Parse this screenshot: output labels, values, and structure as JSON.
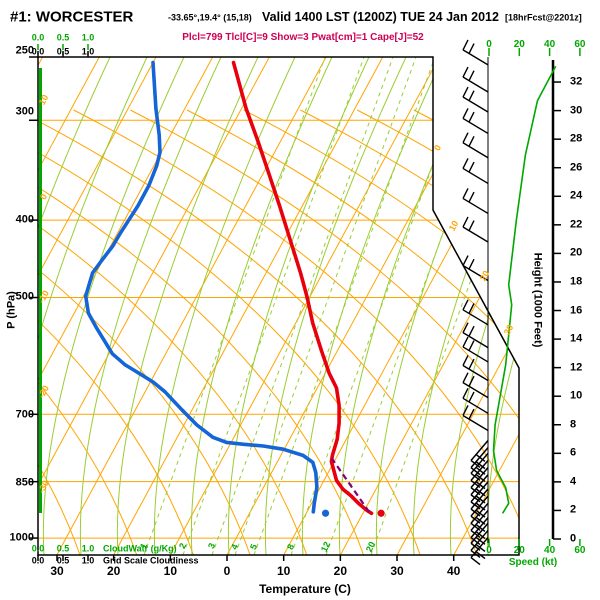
{
  "header": {
    "station": "#1: WORCESTER",
    "coords": "-33.65°,19.4° (15,18)",
    "valid": "Valid 1400 LST (1200Z) TUE 24 Jan 2012",
    "fcst_tag": "[18hrFcst@2201z]",
    "params": "Plcl=799 Tlcl[C]=9 Show=3 Pwat[cm]=1 Cape[J]=52"
  },
  "axes": {
    "pressure": {
      "title": "P (hPa)",
      "ticks": [
        "250",
        "300",
        "400",
        "500",
        "700",
        "850",
        "1000"
      ]
    },
    "temperature": {
      "title": "Temperature (C)",
      "ticks": [
        "30",
        "20",
        "10",
        "0",
        "10",
        "20",
        "30",
        "40"
      ]
    },
    "height": {
      "title": "Height (1000 Feet)",
      "ticks": [
        "0",
        "2",
        "4",
        "6",
        "8",
        "10",
        "12",
        "14",
        "16",
        "18",
        "20",
        "22",
        "24",
        "26",
        "28",
        "30",
        "32"
      ]
    },
    "speed": {
      "title": "Speed (kt)",
      "ticks": [
        "0",
        "20",
        "40",
        "60"
      ]
    },
    "cloud": {
      "green_scale": [
        "0.0",
        "0.5",
        "1.0"
      ],
      "black_scale": [
        "0.0",
        "0.5",
        "1.0"
      ],
      "green_label": "CloudWatr (g/Kg)",
      "black_label": "Grid Scale Cloudiness"
    }
  },
  "grid_labels": {
    "isotherm_left": [
      "10",
      "0",
      "-10",
      "-20",
      "-30"
    ],
    "isotherm_right": [
      "0",
      "10",
      "20",
      "30"
    ],
    "mixing_ratio": [
      "1",
      "2",
      "3",
      "4",
      "5",
      "8",
      "12",
      "20"
    ]
  },
  "colors": {
    "isotherm_grid": "#ffa500",
    "moist_grid": "#9acd32",
    "bright_green": "#00a800",
    "temperature_curve": "#e8000d",
    "dewpoint_curve": "#1565d6",
    "parcel_curve": "#800080",
    "param_text": "#cc0055"
  },
  "chart_data": {
    "type": "skewt_log_p_sounding",
    "title": "#1: WORCESTER Valid 1400 LST (1200Z) TUE 24 Jan 2012",
    "pressure_range_hpa": [
      1050,
      250
    ],
    "temp_axis_c": [
      -30,
      40
    ],
    "height_axis_kft": [
      0,
      32
    ],
    "speed_axis_kt": [
      0,
      60
    ],
    "indices": {
      "Plcl": 799,
      "Tlcl_C": 9,
      "Show": 3,
      "Pwat_cm": 1,
      "Cape_J": 52
    },
    "temperature_profile": [
      {
        "p": 254,
        "t": -45.8
      },
      {
        "p": 290,
        "t": -39.2
      },
      {
        "p": 318,
        "t": -34.1
      },
      {
        "p": 349,
        "t": -29.1
      },
      {
        "p": 384,
        "t": -24.0
      },
      {
        "p": 425,
        "t": -18.7
      },
      {
        "p": 466,
        "t": -13.9
      },
      {
        "p": 500,
        "t": -10.4
      },
      {
        "p": 538,
        "t": -7.0
      },
      {
        "p": 583,
        "t": -2.8
      },
      {
        "p": 622,
        "t": 0.7
      },
      {
        "p": 649,
        "t": 3.4
      },
      {
        "p": 682,
        "t": 5.5
      },
      {
        "p": 718,
        "t": 7.2
      },
      {
        "p": 752,
        "t": 8.4
      },
      {
        "p": 788,
        "t": 9.1
      },
      {
        "p": 802,
        "t": 9.5
      },
      {
        "p": 847,
        "t": 12.2
      },
      {
        "p": 869,
        "t": 14.2
      },
      {
        "p": 885,
        "t": 16.2
      },
      {
        "p": 906,
        "t": 18.4
      },
      {
        "p": 924,
        "t": 20.5
      },
      {
        "p": 931,
        "t": 21.5
      }
    ],
    "surface_temp_point": {
      "p": 931,
      "t": 23.2
    },
    "dewpoint_profile": [
      {
        "p": 254,
        "td": -60.0
      },
      {
        "p": 290,
        "td": -55.1
      },
      {
        "p": 313,
        "td": -52.0
      },
      {
        "p": 329,
        "td": -50.2
      },
      {
        "p": 342,
        "td": -49.5
      },
      {
        "p": 362,
        "td": -49.0
      },
      {
        "p": 384,
        "td": -49.0
      },
      {
        "p": 415,
        "td": -49.5
      },
      {
        "p": 431,
        "td": -49.6
      },
      {
        "p": 450,
        "td": -50.2
      },
      {
        "p": 466,
        "td": -50.6
      },
      {
        "p": 498,
        "td": -49.6
      },
      {
        "p": 523,
        "td": -47.5
      },
      {
        "p": 547,
        "td": -44.5
      },
      {
        "p": 588,
        "td": -39.4
      },
      {
        "p": 607,
        "td": -36.1
      },
      {
        "p": 623,
        "td": -32.6
      },
      {
        "p": 638,
        "td": -29.5
      },
      {
        "p": 656,
        "td": -26.5
      },
      {
        "p": 691,
        "td": -21.8
      },
      {
        "p": 722,
        "td": -17.7
      },
      {
        "p": 748,
        "td": -13.7
      },
      {
        "p": 759,
        "td": -10.8
      },
      {
        "p": 763,
        "td": -7.8
      },
      {
        "p": 767,
        "td": -4.0
      },
      {
        "p": 774,
        "td": -0.2
      },
      {
        "p": 788,
        "td": 3.9
      },
      {
        "p": 804,
        "td": 6.3
      },
      {
        "p": 828,
        "td": 7.8
      },
      {
        "p": 864,
        "td": 9.4
      },
      {
        "p": 906,
        "td": 10.5
      },
      {
        "p": 927,
        "td": 11.1
      }
    ],
    "surface_dewpoint_point": {
      "p": 931,
      "td": 13.4
    },
    "parcel_path": [
      {
        "p": 928,
        "t": 21.0
      },
      {
        "p": 795,
        "t": 9.3
      }
    ],
    "wind_speed_profile_kft_kt": [
      {
        "kft": 33.1,
        "kt": 44
      },
      {
        "kft": 30.7,
        "kt": 32
      },
      {
        "kft": 26.9,
        "kt": 24
      },
      {
        "kft": 22.3,
        "kt": 18
      },
      {
        "kft": 17.8,
        "kt": 13
      },
      {
        "kft": 16.4,
        "kt": 15
      },
      {
        "kft": 12.2,
        "kt": 11
      },
      {
        "kft": 8.0,
        "kt": 4
      },
      {
        "kft": 6.2,
        "kt": 3
      },
      {
        "kft": 4.8,
        "kt": 5
      },
      {
        "kft": 3.6,
        "kt": 11
      },
      {
        "kft": 2.5,
        "kt": 13
      },
      {
        "kft": 1.8,
        "kt": 9
      }
    ],
    "wind_barbs": [
      {
        "kft": 33.2,
        "dir": "up-left"
      },
      {
        "kft": 31.3,
        "dir": "up-left"
      },
      {
        "kft": 29.9,
        "dir": "up-left"
      },
      {
        "kft": 28.4,
        "dir": "up-left"
      },
      {
        "kft": 26.7,
        "dir": "up-left"
      },
      {
        "kft": 24.9,
        "dir": "up-left"
      },
      {
        "kft": 22.8,
        "dir": "up-left"
      },
      {
        "kft": 20.8,
        "dir": "up-left"
      },
      {
        "kft": 18.1,
        "dir": "up-left"
      },
      {
        "kft": 15.0,
        "dir": "up-left"
      },
      {
        "kft": 13.4,
        "dir": "up-left"
      },
      {
        "kft": 12.4,
        "dir": "up-left"
      },
      {
        "kft": 11.1,
        "dir": "up-left"
      },
      {
        "kft": 9.9,
        "dir": "up-left"
      },
      {
        "kft": 8.8,
        "dir": "up-left"
      },
      {
        "kft": 7.6,
        "dir": "up-left"
      },
      {
        "kft": 6.9,
        "dir": "down-left"
      },
      {
        "kft": 6.4,
        "dir": "down-left"
      },
      {
        "kft": 6.0,
        "dir": "down-left"
      },
      {
        "kft": 5.5,
        "dir": "down-left"
      },
      {
        "kft": 5.0,
        "dir": "down-left"
      },
      {
        "kft": 4.5,
        "dir": "down-left"
      },
      {
        "kft": 4.0,
        "dir": "down-left"
      },
      {
        "kft": 3.5,
        "dir": "down-left"
      },
      {
        "kft": 3.0,
        "dir": "down-left"
      },
      {
        "kft": 2.5,
        "dir": "down-left"
      },
      {
        "kft": 2.0,
        "dir": "down-left"
      },
      {
        "kft": 1.5,
        "dir": "down-left"
      },
      {
        "kft": 1.1,
        "dir": "down-left"
      },
      {
        "kft": 0.6,
        "dir": "down-left"
      },
      {
        "kft": 0.1,
        "dir": "down-left"
      }
    ],
    "cloud_water_profile": {
      "value_g_kg": 0,
      "from_kft": 2,
      "to_kft": 33
    },
    "legend": {
      "red": "temperature",
      "blue": "dewpoint",
      "purple_dashed": "surface parcel ascent",
      "green_curve": "wind speed (kt)",
      "green_left_line": "cloud water (0 g/Kg)"
    }
  }
}
